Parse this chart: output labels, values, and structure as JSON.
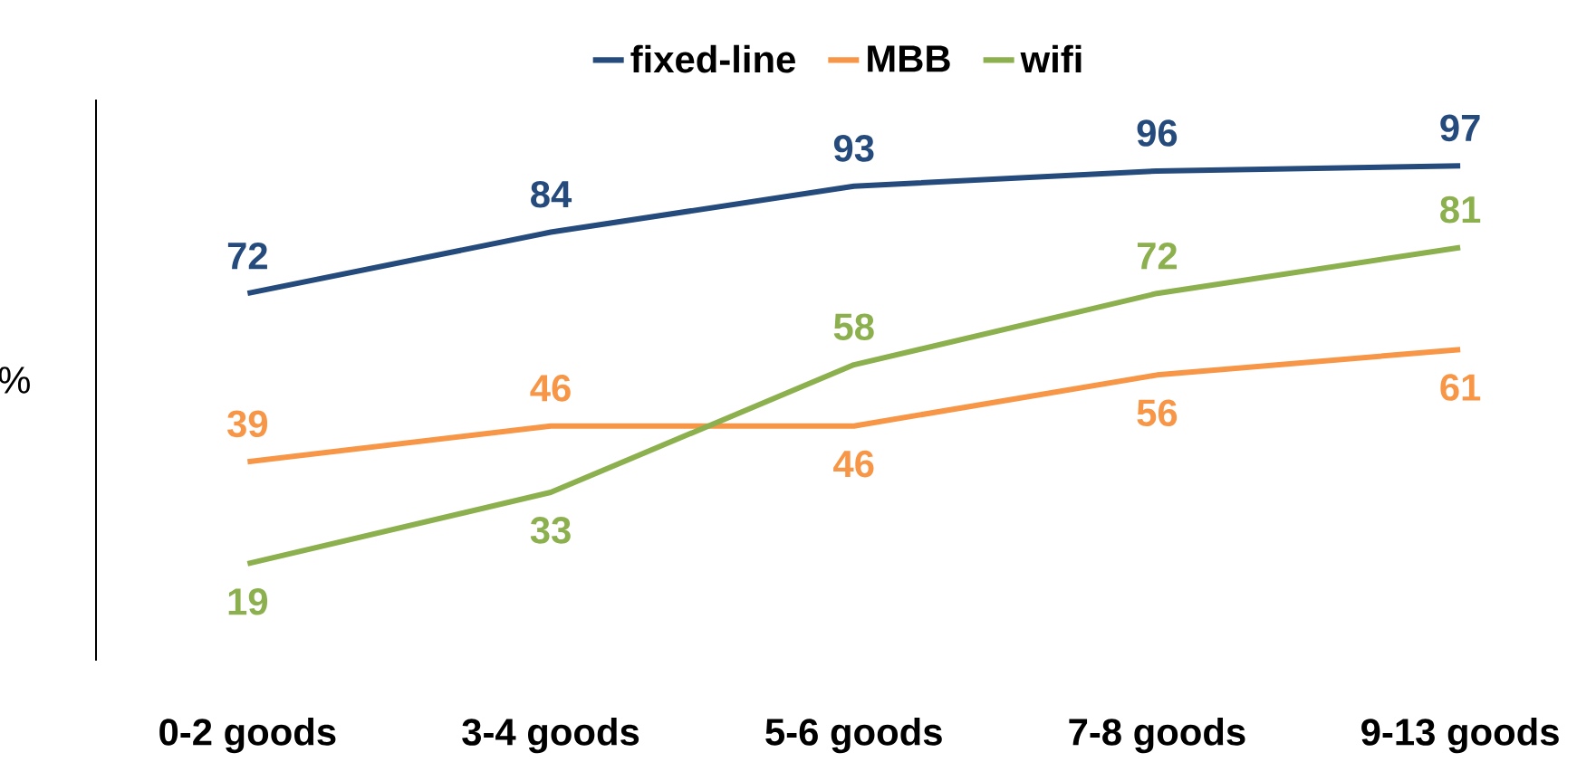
{
  "chart_data": {
    "type": "line",
    "ylabel": "%",
    "categories": [
      "0-2 goods",
      "3-4 goods",
      "5-6 goods",
      "7-8 goods",
      "9-13 goods"
    ],
    "series": [
      {
        "name": "fixed-line",
        "color": "#254a7c",
        "values": [
          72,
          84,
          93,
          96,
          97
        ]
      },
      {
        "name": "MBB",
        "color": "#f79646",
        "values": [
          39,
          46,
          46,
          56,
          61
        ]
      },
      {
        "name": "wifi",
        "color": "#8cb04e",
        "values": [
          19,
          33,
          58,
          72,
          81
        ]
      }
    ],
    "ylim": [
      0,
      110
    ],
    "data_labels": true,
    "legend": "top",
    "grid": false,
    "marker": "none",
    "line_style": "solid"
  }
}
